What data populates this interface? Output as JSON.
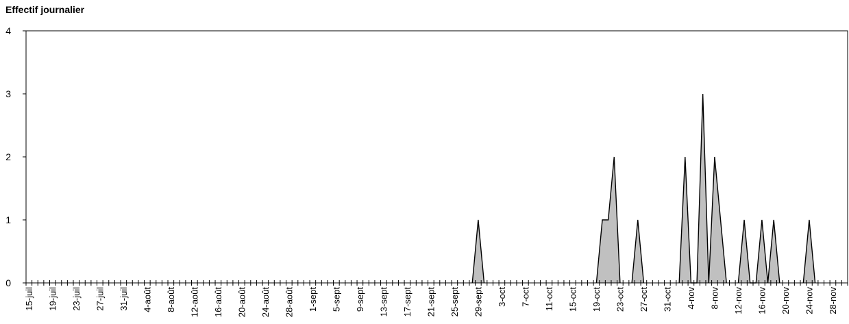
{
  "chart_data": {
    "type": "area",
    "title": "Effectif journalier",
    "xlabel": "",
    "ylabel": "",
    "ylim": [
      0,
      4
    ],
    "yticks": [
      0,
      1,
      2,
      3,
      4
    ],
    "grid": false,
    "start_date": "15-juil",
    "end_date": "30-nov",
    "categories": [
      "15-juil",
      "19-juil",
      "23-juil",
      "27-juil",
      "31-juil",
      "4-août",
      "8-août",
      "12-août",
      "16-août",
      "20-août",
      "24-août",
      "28-août",
      "1-sept",
      "5-sept",
      "9-sept",
      "13-sept",
      "17-sept",
      "21-sept",
      "25-sept",
      "29-sept",
      "3-oct",
      "7-oct",
      "11-oct",
      "15-oct",
      "19-oct",
      "23-oct",
      "27-oct",
      "31-oct",
      "4-nov",
      "8-nov",
      "12-nov",
      "16-nov",
      "20-nov",
      "24-nov",
      "28-nov"
    ],
    "series": [
      {
        "fill": "#c0c0c0",
        "stroke": "#000000",
        "points": [
          {
            "x": "28-sept",
            "y": 0
          },
          {
            "x": "29-sept",
            "y": 1
          },
          {
            "x": "30-sept",
            "y": 0
          },
          {
            "x": "19-oct",
            "y": 0
          },
          {
            "x": "20-oct",
            "y": 1
          },
          {
            "x": "21-oct",
            "y": 1
          },
          {
            "x": "22-oct",
            "y": 2
          },
          {
            "x": "23-oct",
            "y": 0
          },
          {
            "x": "25-oct",
            "y": 0
          },
          {
            "x": "26-oct",
            "y": 1
          },
          {
            "x": "27-oct",
            "y": 0
          },
          {
            "x": "2-nov",
            "y": 0
          },
          {
            "x": "3-nov",
            "y": 2
          },
          {
            "x": "4-nov",
            "y": 0
          },
          {
            "x": "5-nov",
            "y": 0
          },
          {
            "x": "6-nov",
            "y": 3
          },
          {
            "x": "7-nov",
            "y": 0
          },
          {
            "x": "8-nov",
            "y": 2
          },
          {
            "x": "9-nov",
            "y": 1
          },
          {
            "x": "10-nov",
            "y": 0
          },
          {
            "x": "12-nov",
            "y": 0
          },
          {
            "x": "13-nov",
            "y": 1
          },
          {
            "x": "14-nov",
            "y": 0
          },
          {
            "x": "15-nov",
            "y": 0
          },
          {
            "x": "16-nov",
            "y": 1
          },
          {
            "x": "17-nov",
            "y": 0
          },
          {
            "x": "18-nov",
            "y": 1
          },
          {
            "x": "19-nov",
            "y": 0
          },
          {
            "x": "23-nov",
            "y": 0
          },
          {
            "x": "24-nov",
            "y": 1
          },
          {
            "x": "25-nov",
            "y": 0
          }
        ]
      }
    ]
  }
}
